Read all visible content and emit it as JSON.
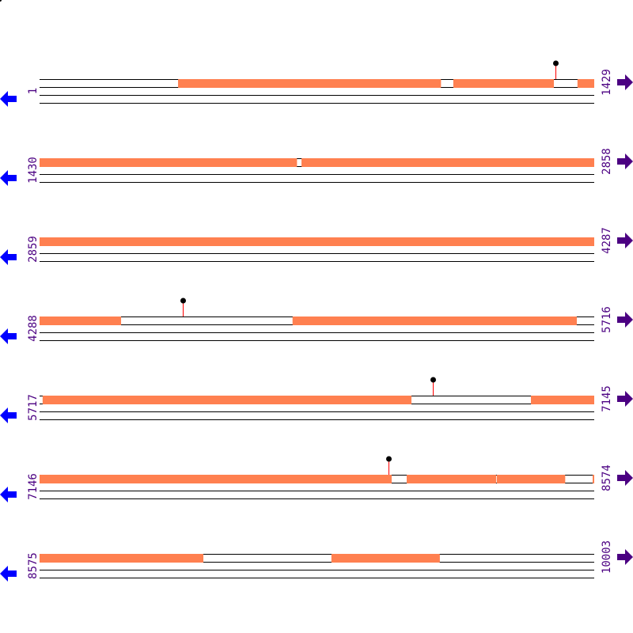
{
  "map": {
    "bp_per_row": 1429,
    "total_length": 10003,
    "colors": {
      "feature": "#ff8050",
      "line": "#000000",
      "pin_stem": "#ff0000",
      "pin_head": "#000000",
      "left_arrow": "#0000ff",
      "right_arrow": "#4b0082",
      "label": "#4b0082"
    },
    "icons": {
      "left": "arrow-left-icon",
      "right": "arrow-right-icon"
    },
    "rows": [
      {
        "start": "1",
        "end": "1429"
      },
      {
        "start": "1430",
        "end": "2858"
      },
      {
        "start": "2859",
        "end": "4287"
      },
      {
        "start": "4288",
        "end": "5716"
      },
      {
        "start": "5717",
        "end": "7145"
      },
      {
        "start": "7146",
        "end": "8574"
      },
      {
        "start": "8575",
        "end": "10003"
      }
    ],
    "features": [
      [
        358,
        1035
      ],
      [
        1067,
        1326
      ],
      [
        1387,
        2093
      ],
      [
        2105,
        4498
      ],
      [
        4940,
        5672
      ],
      [
        5725,
        6675
      ],
      [
        6983,
        8053
      ],
      [
        8092,
        8322
      ],
      [
        8324,
        8500
      ],
      [
        8571,
        8997
      ],
      [
        9327,
        9606
      ]
    ],
    "pins": [
      1330,
      4657,
      6730,
      8045
    ]
  }
}
